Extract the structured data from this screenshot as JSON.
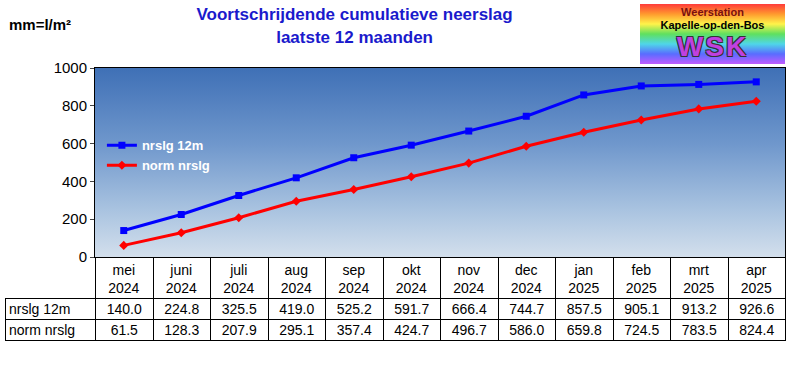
{
  "chart_data": {
    "type": "line",
    "title": "Voortschrijdende cumulatieve neerslag",
    "subtitle": "laatste 12 maanden",
    "y_label": "mm=l/m²",
    "categories": [
      "mei 2024",
      "juni 2024",
      "juli 2024",
      "aug 2024",
      "sep 2024",
      "okt 2024",
      "nov 2024",
      "dec 2024",
      "jan 2025",
      "feb 2025",
      "mrt 2025",
      "apr 2025"
    ],
    "series": [
      {
        "name": "nrslg 12m",
        "color": "#0000ff",
        "marker": "square",
        "values": [
          140.0,
          224.8,
          325.5,
          419.0,
          525.2,
          591.7,
          666.4,
          744.7,
          857.5,
          905.1,
          913.2,
          926.6
        ],
        "value_labels": [
          "140.0",
          "224.8",
          "325.5",
          "419.0",
          "525.2",
          "591.7",
          "666.4",
          "744.7",
          "857.5",
          "905.1",
          "913.2",
          "926.6"
        ]
      },
      {
        "name": "norm nrslg",
        "color": "#ff0000",
        "marker": "diamond",
        "values": [
          61.5,
          128.3,
          207.9,
          295.1,
          357.4,
          424.7,
          496.7,
          586.0,
          659.8,
          724.5,
          783.5,
          824.4
        ],
        "value_labels": [
          "61.5",
          "128.3",
          "207.9",
          "295.1",
          "357.4",
          "424.7",
          "496.7",
          "586.0",
          "659.8",
          "724.5",
          "783.5",
          "824.4"
        ]
      }
    ],
    "ylim": [
      0,
      1000
    ],
    "yticks": [
      0,
      200,
      400,
      600,
      800,
      1000
    ],
    "grid": false,
    "legend": "upper left",
    "annotations": [
      "Weerstation",
      "Kapelle-op-den-Bos",
      "WSK"
    ]
  }
}
